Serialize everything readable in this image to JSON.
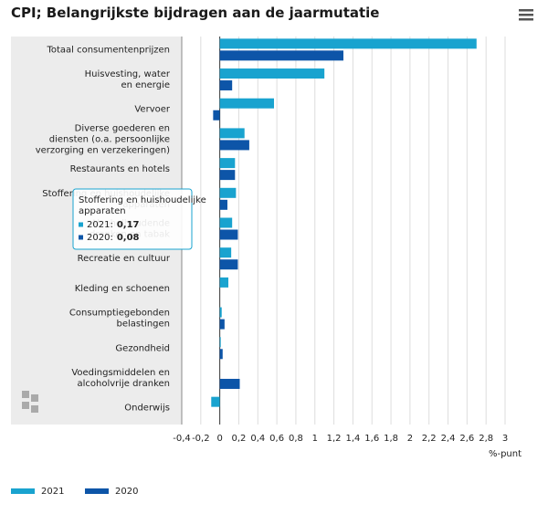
{
  "chart_data": {
    "type": "barh",
    "title": "CPI; Belangrijkste bijdragen aan de jaarmutatie",
    "xlabel": "%-punt",
    "categories": [
      "Totaal consumentenprijzen",
      "Huisvesting, water\nen energie",
      "Vervoer",
      "Diverse goederen en\ndiensten (o.a. persoonlijke\nverzorging en verzekeringen)",
      "Restaurants en hotels",
      "Stoffering en huishoudelijke\napparaten",
      "Alcoholhoudende\ndranken en tabak",
      "Recreatie en cultuur",
      "Kleding en schoenen",
      "Consumptiegebonden\nbelastingen",
      "Gezondheid",
      "Voedingsmiddelen en\nalcoholvrije dranken",
      "Onderwijs"
    ],
    "series": [
      {
        "name": "2021",
        "color": "#19a3cf",
        "values": [
          2.7,
          1.1,
          0.57,
          0.26,
          0.16,
          0.17,
          0.13,
          0.12,
          0.09,
          0.02,
          0.01,
          0.0,
          -0.09
        ]
      },
      {
        "name": "2020",
        "color": "#0d55a8",
        "values": [
          1.3,
          0.13,
          -0.07,
          0.31,
          0.16,
          0.08,
          0.19,
          0.19,
          0.0,
          0.05,
          0.03,
          0.21,
          0.0
        ]
      }
    ],
    "xlim": [
      -0.4,
      3
    ],
    "xticks": [
      {
        "value": -0.4,
        "label": "-0,4"
      },
      {
        "value": -0.2,
        "label": "-0,2"
      },
      0,
      {
        "value": 0.2,
        "label": "0,2"
      },
      {
        "value": 0.4,
        "label": "0,4"
      },
      {
        "value": 0.6,
        "label": "0,6"
      },
      {
        "value": 0.8,
        "label": "0,8"
      },
      1,
      {
        "value": 1.2,
        "label": "1,2"
      },
      {
        "value": 1.4,
        "label": "1,4"
      },
      {
        "value": 1.6,
        "label": "1,6"
      },
      {
        "value": 1.8,
        "label": "1,8"
      },
      2,
      {
        "value": 2.2,
        "label": "2,2"
      },
      {
        "value": 2.4,
        "label": "2,4"
      },
      {
        "value": 2.6,
        "label": "2,6"
      },
      {
        "value": 2.8,
        "label": "2,8"
      },
      3
    ],
    "grid": true,
    "legend": "bottom-left",
    "tooltip": {
      "title": "Stoffering en huishoudelijke\napparaten",
      "rows": [
        {
          "name": "2021:",
          "value": "0,17"
        },
        {
          "name": "2020:",
          "value": "0,08"
        }
      ]
    }
  }
}
